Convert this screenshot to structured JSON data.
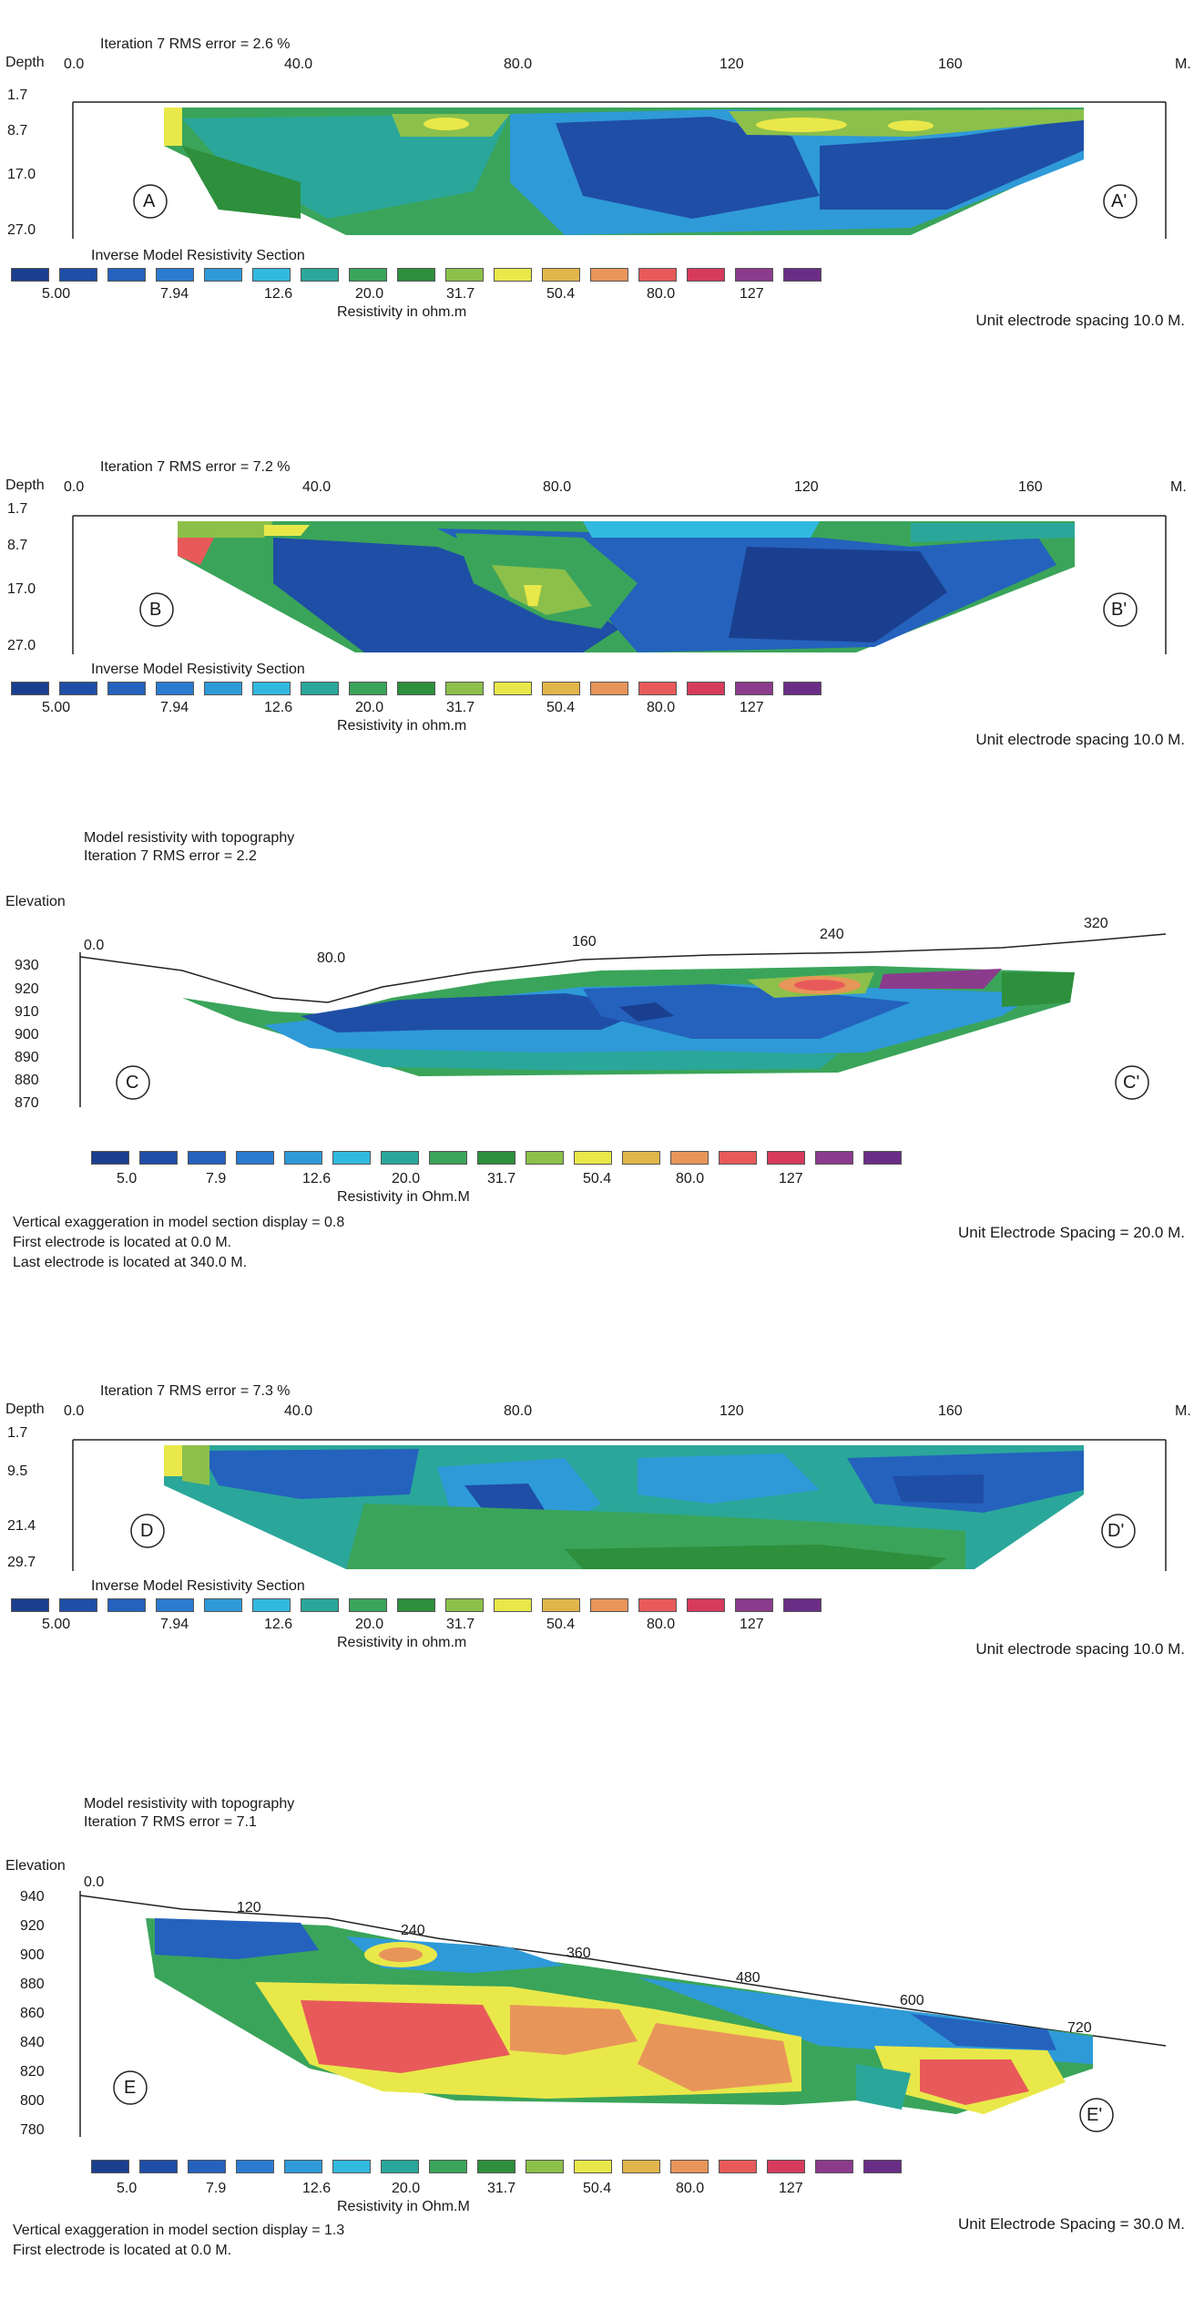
{
  "legend_colors": [
    "#1b3f8f",
    "#1f4ea6",
    "#2462bd",
    "#2b7bd0",
    "#2f9ad8",
    "#32b9e0",
    "#2aa79a",
    "#3aa45a",
    "#2e8f3c",
    "#8cc04a",
    "#e9e84a",
    "#e0b54a",
    "#e8955a",
    "#e85a5a",
    "#d63b5c",
    "#8b3b8c",
    "#6a2d86"
  ],
  "sections": [
    {
      "id": "A",
      "header": "Iteration 7 RMS error = 2.6 %",
      "axis_label": "Depth",
      "x_unit": "M.",
      "x_ticks": [
        "0.0",
        "40.0",
        "80.0",
        "120",
        "160"
      ],
      "y_ticks": [
        "1.7",
        "8.7",
        "17.0",
        "27.0"
      ],
      "left_label": "A",
      "right_label": "A'",
      "legend_title": "Inverse Model Resistivity Section",
      "legend_values": [
        "5.00",
        "7.94",
        "12.6",
        "20.0",
        "31.7",
        "50.4",
        "80.0",
        "127"
      ],
      "legend_unit": "Resistivity in ohm.m",
      "spacing": "Unit electrode spacing 10.0 M."
    },
    {
      "id": "B",
      "header": "Iteration 7 RMS error = 7.2 %",
      "axis_label": "Depth",
      "x_unit": "M.",
      "x_ticks": [
        "0.0",
        "40.0",
        "80.0",
        "120",
        "160"
      ],
      "y_ticks": [
        "1.7",
        "8.7",
        "17.0",
        "27.0"
      ],
      "left_label": "B",
      "right_label": "B'",
      "legend_title": "Inverse Model Resistivity Section",
      "legend_values": [
        "5.00",
        "7.94",
        "12.6",
        "20.0",
        "31.7",
        "50.4",
        "80.0",
        "127"
      ],
      "legend_unit": "Resistivity in ohm.m",
      "spacing": "Unit electrode spacing 10.0 M."
    },
    {
      "id": "C",
      "title1": "Model resistivity with topography",
      "title2": "Iteration 7 RMS error = 2.2",
      "axis_label": "Elevation",
      "x_ticks": [
        "0.0",
        "80.0",
        "160",
        "240",
        "320"
      ],
      "y_ticks": [
        "930",
        "920",
        "910",
        "900",
        "890",
        "880",
        "870"
      ],
      "left_label": "C",
      "right_label": "C'",
      "legend_values": [
        "5.0",
        "7.9",
        "12.6",
        "20.0",
        "31.7",
        "50.4",
        "80.0",
        "127"
      ],
      "legend_unit": "Resistivity in Ohm.M",
      "notes": [
        "Vertical exaggeration in model section display = 0.8",
        "First electrode is located at 0.0  M.",
        "Last electrode is located at 340.0 M."
      ],
      "spacing": "Unit Electrode Spacing = 20.0 M."
    },
    {
      "id": "D",
      "header": "Iteration 7 RMS error = 7.3 %",
      "axis_label": "Depth",
      "x_unit": "M.",
      "x_ticks": [
        "0.0",
        "40.0",
        "80.0",
        "120",
        "160"
      ],
      "y_ticks": [
        "1.7",
        "9.5",
        "21.4",
        "29.7"
      ],
      "left_label": "D",
      "right_label": "D'",
      "legend_title": "Inverse Model Resistivity Section",
      "legend_values": [
        "5.00",
        "7.94",
        "12.6",
        "20.0",
        "31.7",
        "50.4",
        "80.0",
        "127"
      ],
      "legend_unit": "Resistivity in ohm.m",
      "spacing": "Unit electrode spacing 10.0 M."
    },
    {
      "id": "E",
      "title1": "Model resistivity with topography",
      "title2": "Iteration 7 RMS error = 7.1",
      "axis_label": "Elevation",
      "x_ticks": [
        "0.0",
        "120",
        "240",
        "360",
        "480",
        "600",
        "720"
      ],
      "y_ticks": [
        "940",
        "920",
        "900",
        "880",
        "860",
        "840",
        "820",
        "800",
        "780"
      ],
      "left_label": "E",
      "right_label": "E'",
      "legend_values": [
        "5.0",
        "7.9",
        "12.6",
        "20.0",
        "31.7",
        "50.4",
        "80.0",
        "127"
      ],
      "legend_unit": "Resistivity in Ohm.M",
      "notes": [
        "Vertical exaggeration in model section display = 1.3",
        "First electrode is located at 0.0  M."
      ],
      "spacing": "Unit Electrode Spacing = 30.0 M."
    }
  ],
  "chart_data": [
    {
      "type": "heatmap",
      "title": "Iteration 7 RMS error = 2.6 %",
      "xlabel": "",
      "ylabel": "Depth",
      "x_ticks": [
        0,
        40,
        80,
        120,
        160
      ],
      "y_ticks": [
        1.7,
        8.7,
        17.0,
        27.0
      ],
      "color_scale": [
        5.0,
        7.94,
        12.6,
        20.0,
        31.7,
        50.4,
        80.0,
        127
      ]
    },
    {
      "type": "heatmap",
      "title": "Iteration 7 RMS error = 7.2 %",
      "xlabel": "",
      "ylabel": "Depth",
      "x_ticks": [
        0,
        40,
        80,
        120,
        160
      ],
      "y_ticks": [
        1.7,
        8.7,
        17.0,
        27.0
      ],
      "color_scale": [
        5.0,
        7.94,
        12.6,
        20.0,
        31.7,
        50.4,
        80.0,
        127
      ]
    },
    {
      "type": "heatmap",
      "title": "Model resistivity with topography",
      "ylabel": "Elevation",
      "x_ticks": [
        0,
        80,
        160,
        240,
        320
      ],
      "y_ticks": [
        930,
        920,
        910,
        900,
        890,
        880,
        870
      ],
      "color_scale": [
        5.0,
        7.9,
        12.6,
        20.0,
        31.7,
        50.4,
        80.0,
        127
      ]
    },
    {
      "type": "heatmap",
      "title": "Iteration 7 RMS error = 7.3 %",
      "ylabel": "Depth",
      "x_ticks": [
        0,
        40,
        80,
        120,
        160
      ],
      "y_ticks": [
        1.7,
        9.5,
        21.4,
        29.7
      ],
      "color_scale": [
        5.0,
        7.94,
        12.6,
        20.0,
        31.7,
        50.4,
        80.0,
        127
      ]
    },
    {
      "type": "heatmap",
      "title": "Model resistivity with topography",
      "ylabel": "Elevation",
      "x_ticks": [
        0,
        120,
        240,
        360,
        480,
        600,
        720
      ],
      "y_ticks": [
        940,
        920,
        900,
        880,
        860,
        840,
        820,
        800,
        780
      ],
      "color_scale": [
        5.0,
        7.9,
        12.6,
        20.0,
        31.7,
        50.4,
        80.0,
        127
      ]
    }
  ]
}
